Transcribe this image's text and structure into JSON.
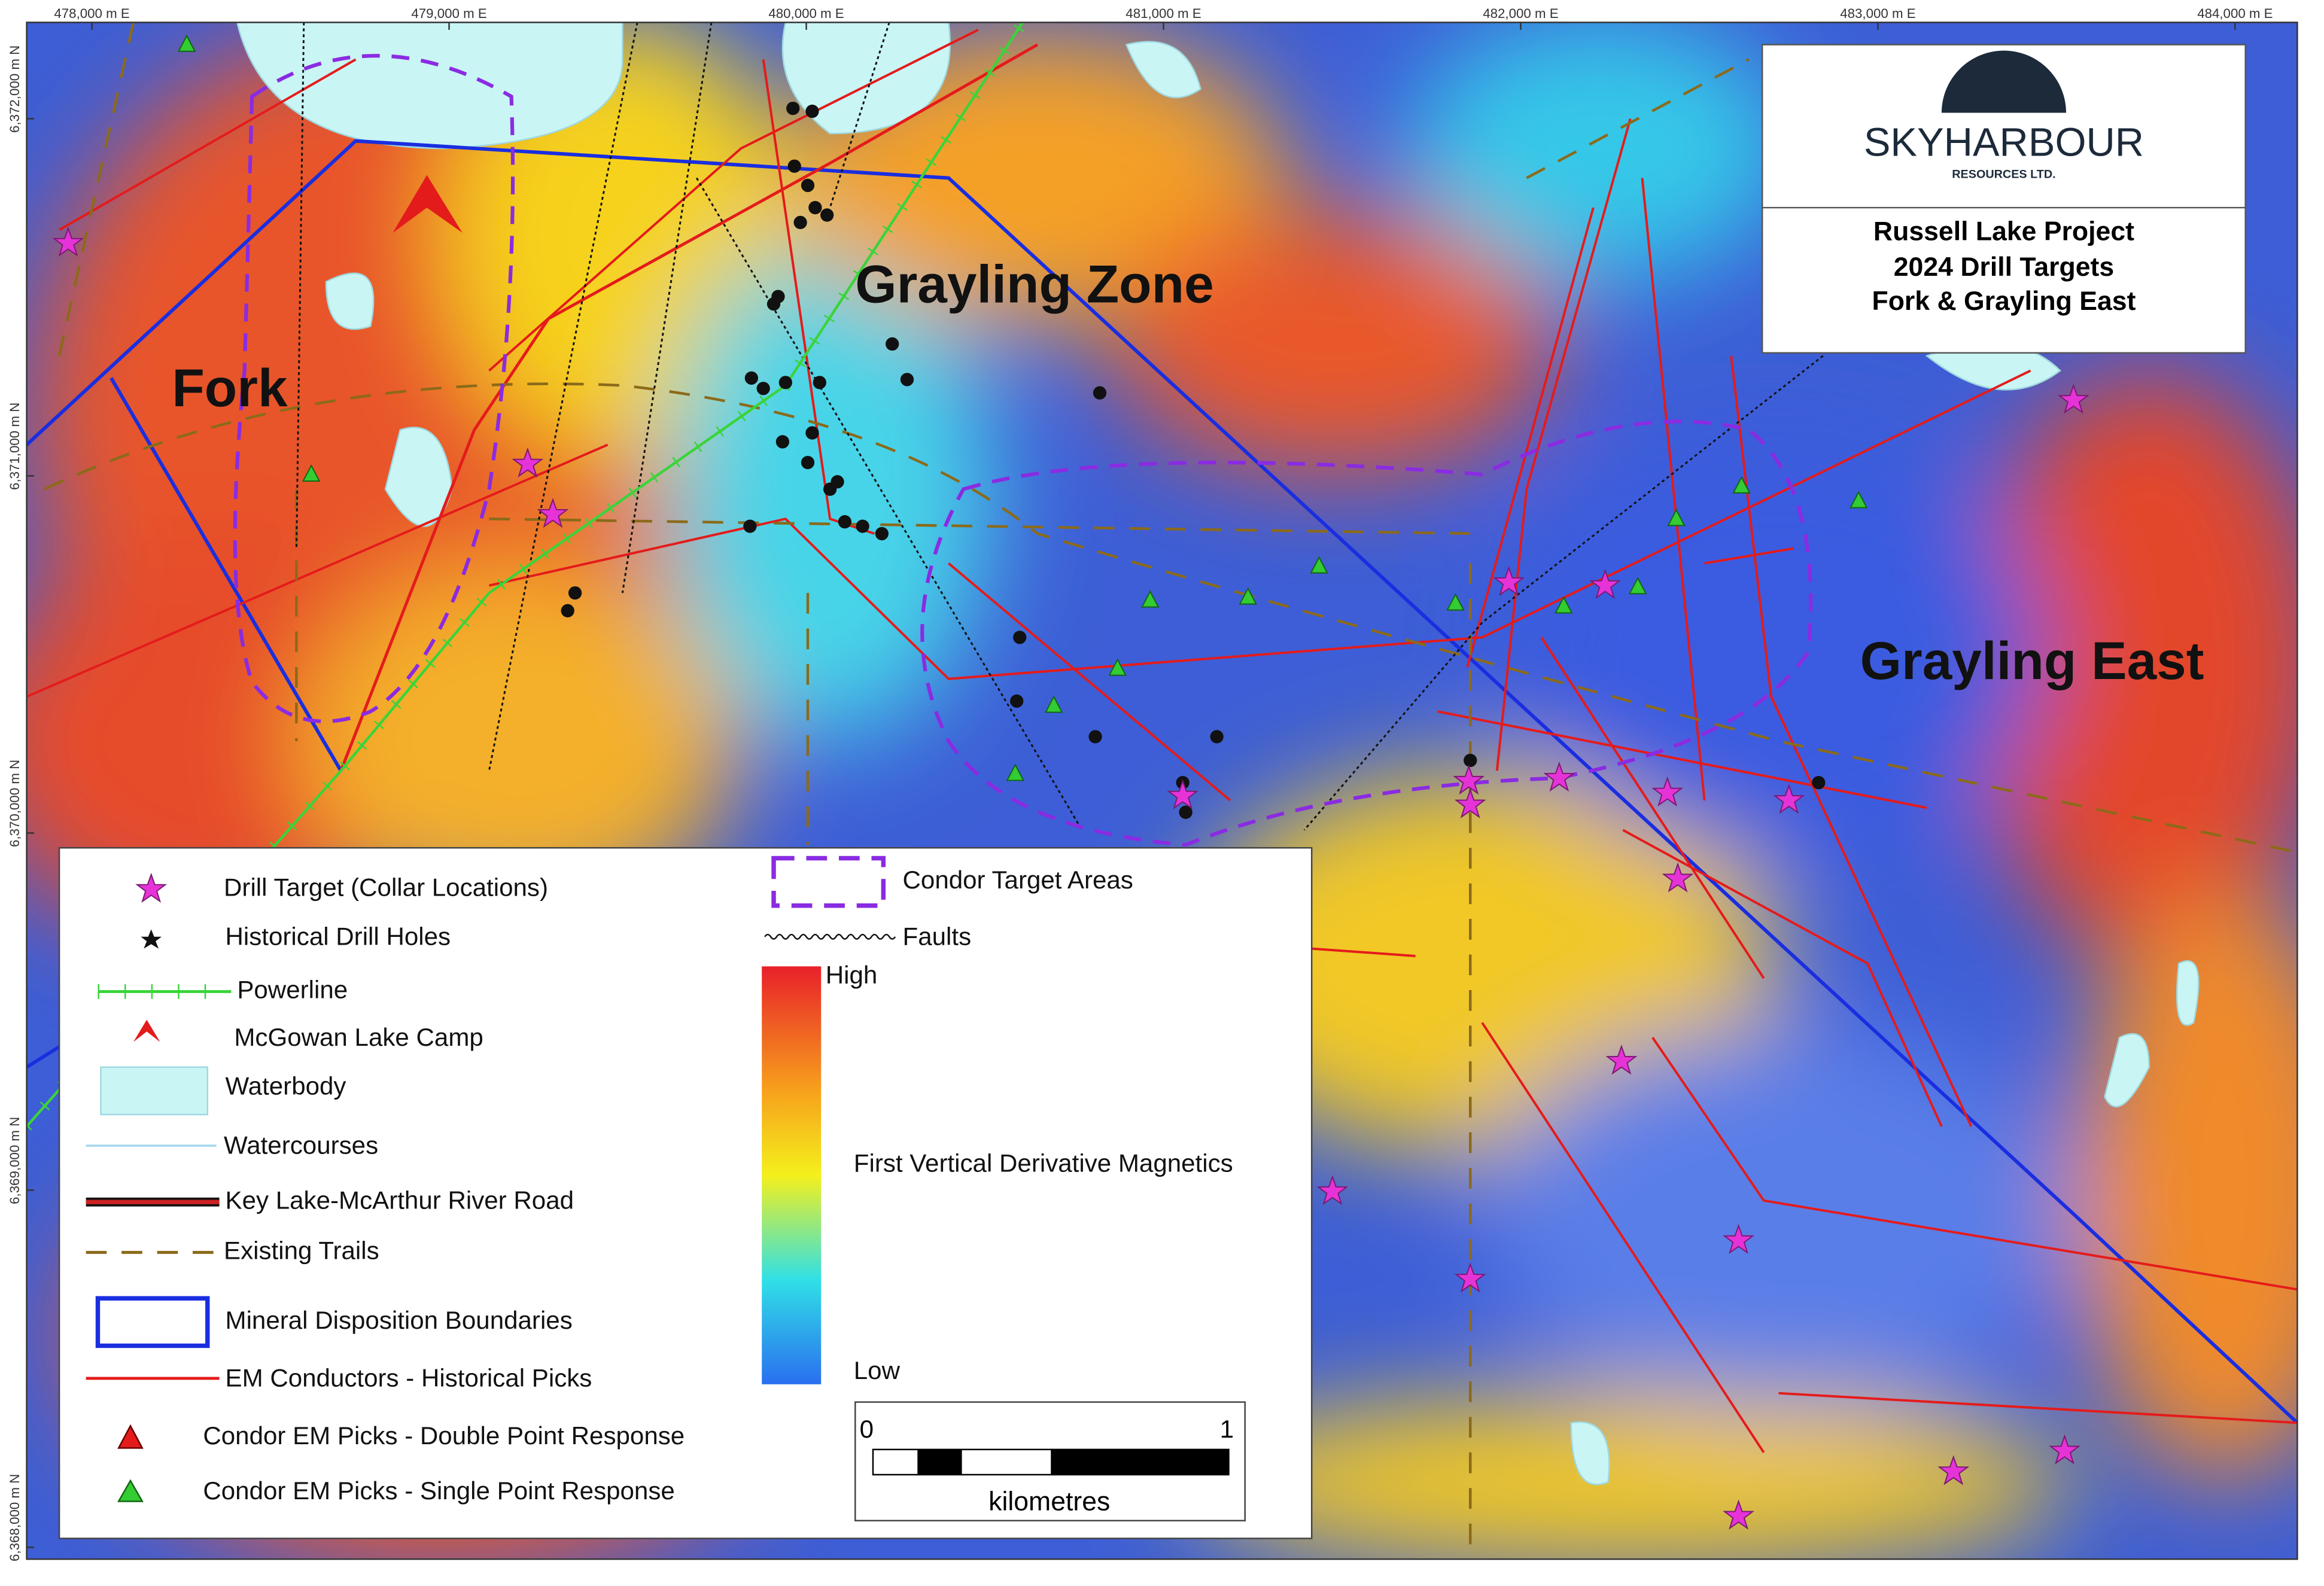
{
  "logo": {
    "name": "SKYHARBOUR",
    "sub": "RESOURCES LTD."
  },
  "title": [
    "Russell Lake Project",
    "2024 Drill Targets",
    "Fork & Grayling East"
  ],
  "areas": [
    "Fork",
    "Grayling Zone",
    "Grayling East"
  ],
  "eastings": [
    "478,000 m E",
    "479,000 m E",
    "480,000 m E",
    "481,000 m E",
    "482,000 m E",
    "483,000 m E",
    "484,000 m E"
  ],
  "northings": [
    "6,372,000 m N",
    "6,371,000 m N",
    "6,370,000 m N",
    "6,369,000 m N",
    "6,368,000 m N"
  ],
  "legend": {
    "left": [
      "Drill Target (Collar Locations)",
      "Historical Drill Holes",
      "Powerline",
      "McGowan Lake Camp",
      "Waterbody",
      "Watercourses",
      "Key Lake-McArthur River Road",
      "Existing Trails",
      "Mineral Disposition Boundaries",
      "EM Conductors - Historical Picks",
      "Condor EM Picks - Double Point Response",
      "Condor EM Picks - Single Point Response"
    ],
    "right": [
      "Condor Target Areas",
      "Faults"
    ],
    "colorbar": {
      "high": "High",
      "low": "Low",
      "name": "First Vertical Derivative Magnetics"
    },
    "scale": {
      "start": "0",
      "end": "1",
      "unit": "kilometres"
    }
  }
}
